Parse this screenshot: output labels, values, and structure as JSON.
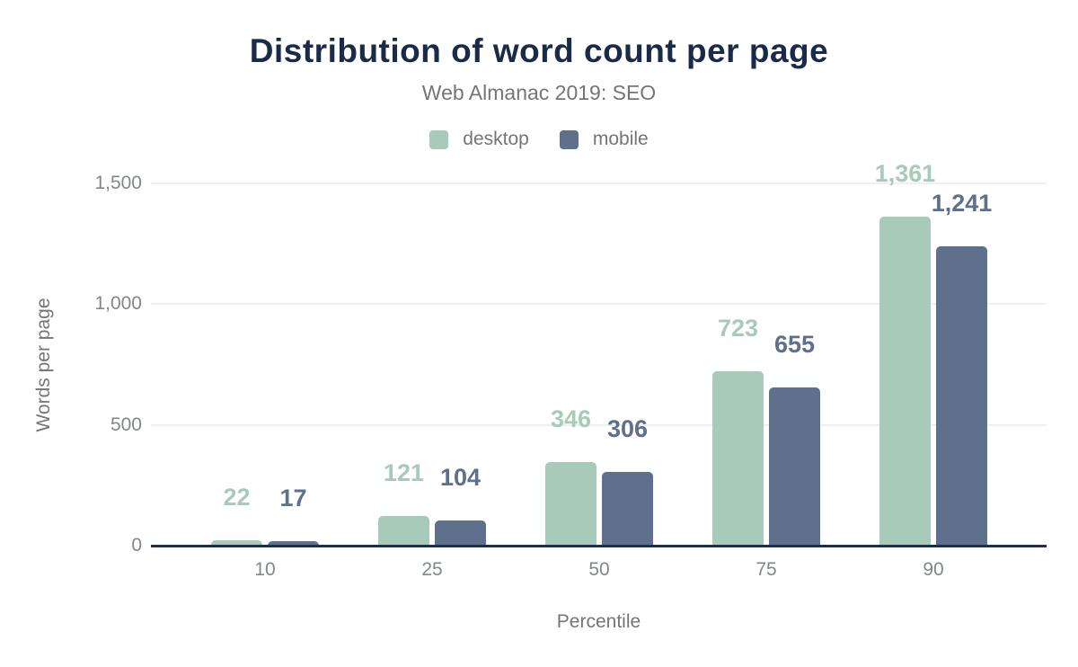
{
  "header": {
    "title": "Distribution of word count per page",
    "subtitle": "Web Almanac 2019: SEO"
  },
  "colors": {
    "title": "#1a2b49",
    "axis_line": "#1f2f4d",
    "gridline": "#efefef",
    "tick_text": "#82878d",
    "axis_title_text": "#757575",
    "desktop": "#a8cab9",
    "mobile": "#5e708c"
  },
  "chart_data": {
    "type": "bar",
    "title": "Distribution of word count per page",
    "subtitle": "Web Almanac 2019: SEO",
    "categories": [
      "10",
      "25",
      "50",
      "75",
      "90"
    ],
    "series": [
      {
        "name": "desktop",
        "color": "#a8cab9",
        "values": [
          22,
          121,
          346,
          723,
          1361
        ],
        "labels": [
          "22",
          "121",
          "346",
          "723",
          "1,361"
        ]
      },
      {
        "name": "mobile",
        "color": "#5e708c",
        "values": [
          17,
          104,
          306,
          655,
          1241
        ],
        "labels": [
          "17",
          "104",
          "306",
          "655",
          "1,241"
        ]
      }
    ],
    "xlabel": "Percentile",
    "ylabel": "Words per page",
    "ylim": [
      0,
      1500
    ],
    "yticks": [
      {
        "value": 0,
        "label": "0"
      },
      {
        "value": 500,
        "label": "500"
      },
      {
        "value": 1000,
        "label": "1,000"
      },
      {
        "value": 1500,
        "label": "1,500"
      }
    ],
    "grid": "horizontal",
    "legend_position": "top",
    "data_labels": true
  }
}
